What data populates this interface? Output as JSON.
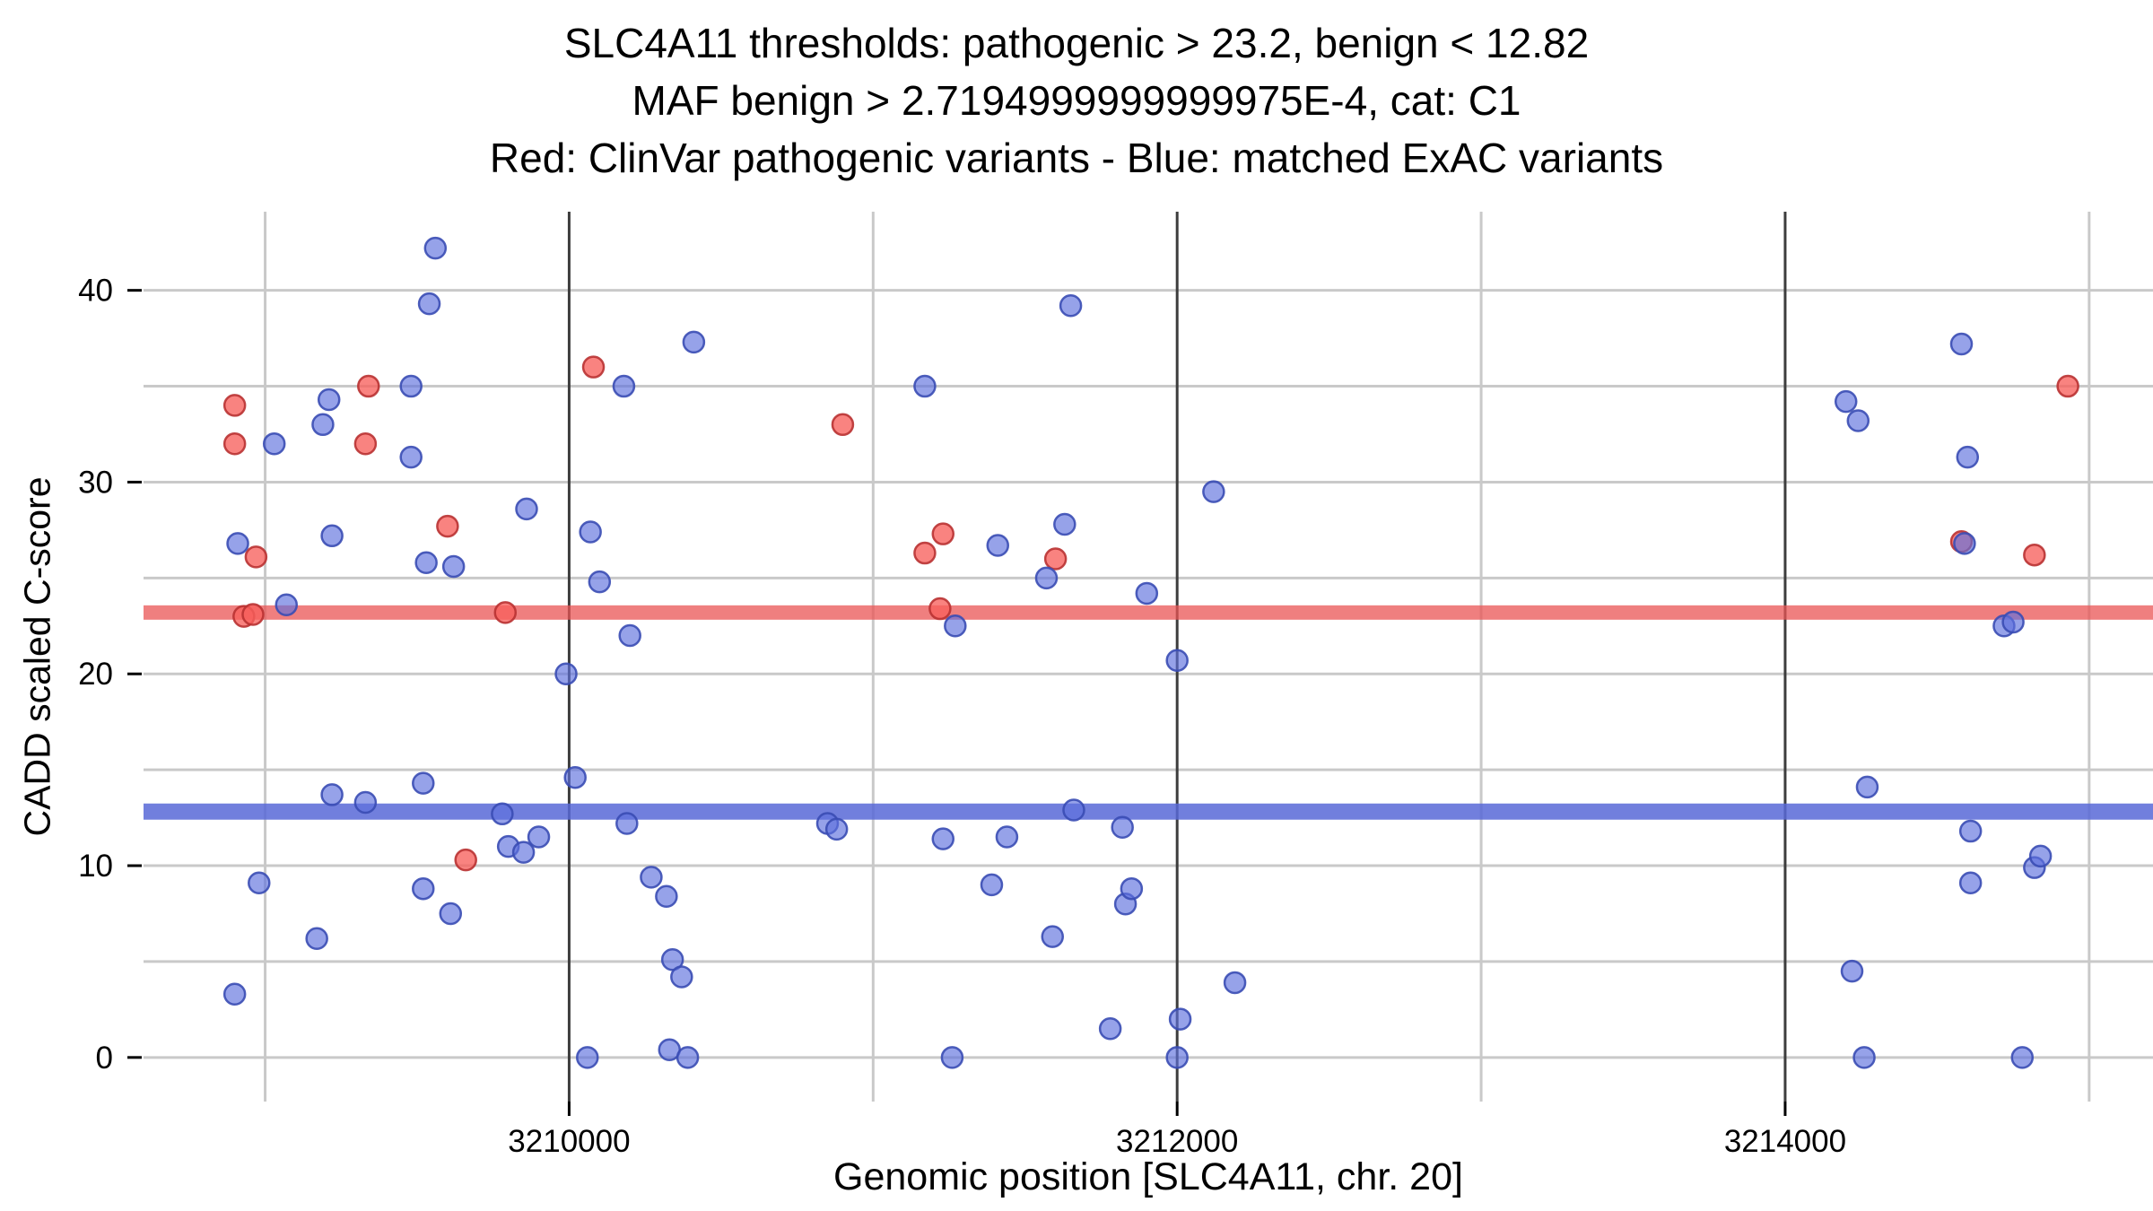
{
  "title": {
    "line1": "SLC4A11 thresholds: pathogenic > 23.2, benign < 12.82",
    "line2": "MAF benign > 2.7194999999999975E-4, cat: C1",
    "line3": "Red: ClinVar pathogenic variants - Blue: matched ExAC variants"
  },
  "axes": {
    "x_label": "Genomic position [SLC4A11, chr. 20]",
    "y_label": "CADD scaled C-score",
    "x_ticks": [
      3210000,
      3212000,
      3214000
    ],
    "x_minor": [
      3209000,
      3211000,
      3213000,
      3215000
    ],
    "y_ticks": [
      0,
      10,
      20,
      30,
      40
    ],
    "y_grid": [
      0,
      5,
      10,
      15,
      20,
      25,
      30,
      35,
      40
    ],
    "xlim": [
      3208600,
      3215210
    ],
    "ylim": [
      -2.3,
      44.1
    ],
    "grid": true
  },
  "colors": {
    "background": "#ffffff",
    "grid_minor": "#c9c9c9",
    "grid_major": "#3d3d3d",
    "tick": "#000000",
    "band_red": "rgba(233,84,84,0.75)",
    "band_blue": "rgba(88,104,215,0.85)"
  },
  "chart_data": {
    "type": "scatter",
    "title": "SLC4A11 thresholds: pathogenic > 23.2, benign < 12.82",
    "xlabel": "Genomic position [SLC4A11, chr. 20]",
    "ylabel": "CADD scaled C-score",
    "xlim": [
      3208600,
      3215210
    ],
    "ylim": [
      -2.3,
      44.1
    ],
    "thresholds": {
      "pathogenic": 23.2,
      "benign": 12.82,
      "maf_benign": "2.7194999999999975E-4",
      "category": "C1"
    },
    "series": [
      {
        "key": "pathogenic",
        "name": "ClinVar pathogenic variants",
        "fill": "rgba(247,96,92,0.78)",
        "stroke": "rgba(185,50,50,0.9)",
        "points": [
          [
            3208900,
            34
          ],
          [
            3208900,
            32
          ],
          [
            3208930,
            23
          ],
          [
            3208960,
            23.1
          ],
          [
            3208970,
            26.1
          ],
          [
            3209330,
            32
          ],
          [
            3209340,
            35
          ],
          [
            3209600,
            27.7
          ],
          [
            3209660,
            10.3
          ],
          [
            3209790,
            23.2
          ],
          [
            3210080,
            36
          ],
          [
            3210900,
            33
          ],
          [
            3211170,
            26.3
          ],
          [
            3211220,
            23.4
          ],
          [
            3211230,
            27.3
          ],
          [
            3211600,
            26
          ],
          [
            3214580,
            26.9
          ],
          [
            3214820,
            26.2
          ],
          [
            3214930,
            35
          ]
        ]
      },
      {
        "key": "benign",
        "name": "matched ExAC variants",
        "fill": "rgba(93,112,221,0.65)",
        "stroke": "rgba(58,76,180,0.9)",
        "points": [
          [
            3208900,
            3.3
          ],
          [
            3208910,
            26.8
          ],
          [
            3208980,
            9.1
          ],
          [
            3209030,
            32
          ],
          [
            3209070,
            23.6
          ],
          [
            3209170,
            6.2
          ],
          [
            3209190,
            33
          ],
          [
            3209210,
            34.3
          ],
          [
            3209220,
            27.2
          ],
          [
            3209220,
            13.7
          ],
          [
            3209330,
            13.3
          ],
          [
            3209480,
            35
          ],
          [
            3209480,
            31.3
          ],
          [
            3209520,
            14.3
          ],
          [
            3209520,
            8.8
          ],
          [
            3209530,
            25.8
          ],
          [
            3209540,
            39.3
          ],
          [
            3209560,
            42.2
          ],
          [
            3209610,
            7.5
          ],
          [
            3209620,
            25.6
          ],
          [
            3209780,
            12.7
          ],
          [
            3209800,
            11
          ],
          [
            3209850,
            10.7
          ],
          [
            3209860,
            28.6
          ],
          [
            3209900,
            11.5
          ],
          [
            3209990,
            20
          ],
          [
            3210020,
            14.6
          ],
          [
            3210060,
            0
          ],
          [
            3210070,
            27.4
          ],
          [
            3210100,
            24.8
          ],
          [
            3210180,
            35
          ],
          [
            3210190,
            12.2
          ],
          [
            3210200,
            22
          ],
          [
            3210270,
            9.4
          ],
          [
            3210320,
            8.4
          ],
          [
            3210330,
            0.4
          ],
          [
            3210340,
            5.1
          ],
          [
            3210370,
            4.2
          ],
          [
            3210390,
            0
          ],
          [
            3210410,
            37.3
          ],
          [
            3210850,
            12.2
          ],
          [
            3210880,
            11.9
          ],
          [
            3211170,
            35
          ],
          [
            3211230,
            11.4
          ],
          [
            3211260,
            0
          ],
          [
            3211270,
            22.5
          ],
          [
            3211390,
            9
          ],
          [
            3211410,
            26.7
          ],
          [
            3211440,
            11.5
          ],
          [
            3211570,
            25
          ],
          [
            3211590,
            6.3
          ],
          [
            3211630,
            27.8
          ],
          [
            3211650,
            39.2
          ],
          [
            3211660,
            12.9
          ],
          [
            3211780,
            1.5
          ],
          [
            3211820,
            12
          ],
          [
            3211830,
            8
          ],
          [
            3211850,
            8.8
          ],
          [
            3211900,
            24.2
          ],
          [
            3212000,
            20.7
          ],
          [
            3212000,
            0
          ],
          [
            3212010,
            2
          ],
          [
            3212120,
            29.5
          ],
          [
            3212190,
            3.9
          ],
          [
            3214200,
            34.2
          ],
          [
            3214220,
            4.5
          ],
          [
            3214240,
            33.2
          ],
          [
            3214260,
            0
          ],
          [
            3214270,
            14.1
          ],
          [
            3214580,
            37.2
          ],
          [
            3214590,
            26.8
          ],
          [
            3214600,
            31.3
          ],
          [
            3214610,
            11.8
          ],
          [
            3214610,
            9.1
          ],
          [
            3214720,
            22.5
          ],
          [
            3214750,
            22.7
          ],
          [
            3214780,
            0
          ],
          [
            3214820,
            9.9
          ],
          [
            3214840,
            10.5
          ]
        ]
      }
    ]
  }
}
